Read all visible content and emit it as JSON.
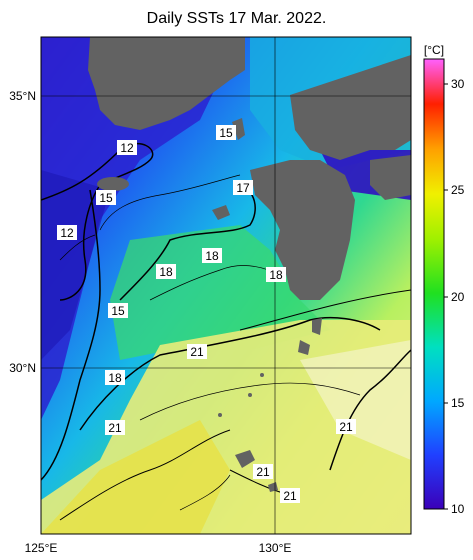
{
  "title": "Daily SSTs 17 Mar. 2022.",
  "axes": {
    "lat_labels": [
      "35°N",
      "30°N"
    ],
    "lon_labels": [
      "125°E",
      "130°E"
    ]
  },
  "colorbar": {
    "unit": "[°C]",
    "ticks": [
      "30",
      "25",
      "20",
      "15",
      "10"
    ],
    "range": [
      10,
      31
    ]
  },
  "contour_labels": [
    "12",
    "15",
    "15",
    "12",
    "17",
    "18",
    "18",
    "18",
    "15",
    "21",
    "18",
    "21",
    "21",
    "21",
    "21"
  ],
  "colors": {
    "land": "#606060",
    "cold": "#2a10c8",
    "warm": "#e8e34a"
  }
}
